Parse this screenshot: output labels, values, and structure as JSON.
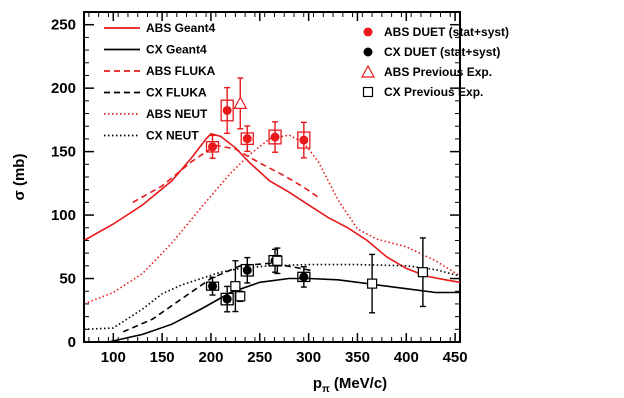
{
  "chart_data": {
    "type": "line",
    "title": "",
    "xlabel": "p",
    "xlabel_sub": "π",
    "xlabel_unit": " (MeV/c)",
    "ylabel": "σ (mb)",
    "xlim": [
      70,
      455
    ],
    "ylim": [
      0,
      260
    ],
    "xticks": [
      100,
      150,
      200,
      250,
      300,
      350,
      400,
      450
    ],
    "yticks": [
      0,
      50,
      100,
      150,
      200,
      250
    ],
    "colors": {
      "abs": "#e8191b",
      "cx": "#000000"
    },
    "series": [
      {
        "name": "ABS Geant4",
        "kind": "model",
        "color": "#e8191b",
        "dash": "solid",
        "x": [
          70,
          100,
          130,
          160,
          180,
          195,
          200,
          210,
          225,
          240,
          260,
          280,
          300,
          320,
          340,
          360,
          380,
          400,
          420,
          440,
          455
        ],
        "y": [
          80,
          93,
          108,
          127,
          145,
          160,
          164,
          162,
          153,
          141,
          127,
          118,
          108,
          98,
          90,
          80,
          67,
          58,
          52,
          49,
          47
        ]
      },
      {
        "name": "CX Geant4",
        "kind": "model",
        "color": "#000000",
        "dash": "solid",
        "x": [
          95,
          130,
          160,
          190,
          220,
          250,
          280,
          300,
          330,
          360,
          400,
          430,
          455
        ],
        "y": [
          0,
          6,
          14,
          26,
          39,
          47,
          50,
          50,
          49,
          46,
          42,
          39,
          39
        ]
      },
      {
        "name": "ABS FLUKA",
        "kind": "model",
        "color": "#e8191b",
        "dash": "dashed",
        "x": [
          120,
          150,
          180,
          205,
          225,
          250,
          275,
          295,
          310
        ],
        "y": [
          110,
          123,
          142,
          155,
          152,
          141,
          131,
          122,
          114
        ]
      },
      {
        "name": "CX FLUKA",
        "kind": "model",
        "color": "#000000",
        "dash": "dashed",
        "x": [
          110,
          140,
          170,
          200,
          230,
          260,
          285,
          305
        ],
        "y": [
          8,
          18,
          34,
          50,
          60,
          62,
          59,
          56
        ]
      },
      {
        "name": "ABS NEUT",
        "kind": "model",
        "color": "#e8191b",
        "dash": "dotted",
        "x": [
          70,
          100,
          130,
          160,
          190,
          220,
          240,
          260,
          280,
          295,
          310,
          330,
          350,
          370,
          400,
          430,
          455
        ],
        "y": [
          30,
          39,
          54,
          78,
          106,
          133,
          148,
          160,
          163,
          157,
          142,
          112,
          89,
          81,
          75,
          64,
          52
        ]
      },
      {
        "name": "CX NEUT",
        "kind": "model",
        "color": "#000000",
        "dash": "dotted",
        "x": [
          70,
          100,
          130,
          150,
          170,
          190,
          210,
          230,
          260,
          300,
          350,
          400,
          430,
          455
        ],
        "y": [
          10,
          11,
          26,
          38,
          45,
          50,
          55,
          58,
          60,
          61,
          61,
          60,
          57,
          52
        ]
      },
      {
        "name": "ABS DUET (stat+syst)",
        "kind": "data",
        "marker": "filled-circle",
        "color": "#e8191b",
        "x": [
          201.6,
          216.6,
          237.2,
          265.6,
          295.1
        ],
        "y": [
          153.8,
          182.4,
          160.2,
          161.5,
          159.1
        ],
        "err": [
          9,
          18,
          10,
          12,
          14
        ]
      },
      {
        "name": "CX DUET (stat+syst)",
        "kind": "data",
        "marker": "filled-circle",
        "color": "#000000",
        "x": [
          201.6,
          216.6,
          237.2,
          265.6,
          295.1
        ],
        "y": [
          44.0,
          33.8,
          56.5,
          64.0,
          51.3
        ],
        "err": [
          7,
          10,
          10,
          9,
          8
        ]
      },
      {
        "name": "ABS Previous Exp.",
        "kind": "data",
        "marker": "open-triangle",
        "color": "#e8191b",
        "x": [
          230
        ],
        "y": [
          188
        ],
        "err": [
          20
        ]
      },
      {
        "name": "CX Previous Exp.",
        "kind": "data",
        "marker": "open-square",
        "color": "#000000",
        "x": [
          225,
          230,
          268,
          365,
          417
        ],
        "y": [
          44,
          36,
          64,
          46,
          55
        ],
        "err": [
          20,
          4,
          10,
          23,
          27
        ]
      }
    ],
    "legend_placement": "top (two columns)"
  }
}
